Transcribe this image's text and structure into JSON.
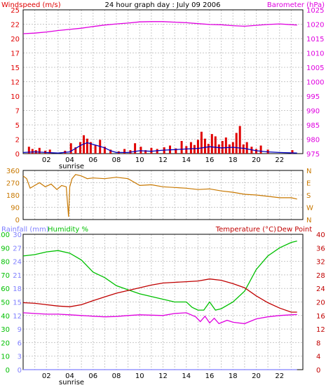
{
  "header": {
    "left_title": "Windspeed (m/s)",
    "center_title": "24 hour graph day : July 09 2006",
    "right_title": "Barometer (hPa)"
  },
  "colors": {
    "wind": "#e00000",
    "wind_avg": "#0000c0",
    "barometer": "#e000e0",
    "direction": "#c87800",
    "rain": "#8080ff",
    "humidity": "#00c000",
    "temperature": "#c00000",
    "dewpoint": "#e000e0"
  },
  "x_ticks": [
    "02",
    "04",
    "06",
    "08",
    "10",
    "12",
    "14",
    "16",
    "18",
    "20",
    "22"
  ],
  "sunrise_label": "sunrise",
  "chart_data": [
    {
      "type": "bar",
      "panel": "wind-barometer",
      "title": "Windspeed (m/s)",
      "ylabel_left": "Windspeed (m/s)",
      "ylabel_right": "Barometer (hPa)",
      "x_range": [
        0,
        24
      ],
      "ylim_left": [
        0,
        25
      ],
      "ylim_right": [
        975,
        1025
      ],
      "left_ticks": [
        "0",
        "2",
        "5",
        "7",
        "10",
        "12",
        "15",
        "17",
        "20",
        "22",
        "25"
      ],
      "right_ticks": [
        "975",
        "980",
        "985",
        "990",
        "995",
        "1000",
        "1005",
        "1010",
        "1015",
        "1020",
        "1025"
      ],
      "series": [
        {
          "name": "Barometer",
          "unit": "hPa",
          "x": [
            0,
            1,
            2,
            3,
            4,
            5,
            6,
            7,
            8,
            9,
            10,
            11,
            12,
            13,
            14,
            15,
            16,
            17,
            18,
            19,
            20,
            21,
            22,
            23.5
          ],
          "y": [
            1016.7,
            1016.9,
            1017.3,
            1017.8,
            1018.2,
            1018.6,
            1019.2,
            1019.7,
            1020.1,
            1020.4,
            1020.8,
            1020.9,
            1020.9,
            1020.7,
            1020.5,
            1020.2,
            1019.9,
            1019.8,
            1019.5,
            1019.3,
            1019.6,
            1019.9,
            1020.1,
            1019.7
          ]
        },
        {
          "name": "Windspeed gust",
          "unit": "m/s",
          "x": [
            0.5,
            0.8,
            1.1,
            1.4,
            1.9,
            2.3,
            3.6,
            4.1,
            4.5,
            4.9,
            5.2,
            5.5,
            5.8,
            6.2,
            6.6,
            7.0,
            7.5,
            8.2,
            8.7,
            9.2,
            9.6,
            10.1,
            10.5,
            11.0,
            11.5,
            12.1,
            12.6,
            13.1,
            13.6,
            14.0,
            14.4,
            14.7,
            15.0,
            15.3,
            15.6,
            15.9,
            16.2,
            16.5,
            16.8,
            17.1,
            17.4,
            17.7,
            18.0,
            18.3,
            18.6,
            18.9,
            19.2,
            19.6,
            20.0,
            20.4,
            21.0,
            23.1
          ],
          "y": [
            1.2,
            0.8,
            0.6,
            1.0,
            0.5,
            0.7,
            0.5,
            1.8,
            1.1,
            2.0,
            3.2,
            2.6,
            2.0,
            1.5,
            2.4,
            1.2,
            0.7,
            0.4,
            0.8,
            0.6,
            1.8,
            1.2,
            0.6,
            1.0,
            0.8,
            1.1,
            1.4,
            0.9,
            2.2,
            1.3,
            2.0,
            1.5,
            2.4,
            3.8,
            2.6,
            1.7,
            3.4,
            3.0,
            1.6,
            2.2,
            2.8,
            1.6,
            2.0,
            3.6,
            4.8,
            1.6,
            2.0,
            1.2,
            0.8,
            1.4,
            0.7,
            0.6
          ]
        },
        {
          "name": "Windspeed average",
          "unit": "m/s",
          "x": [
            0,
            1,
            2,
            3,
            4,
            4.5,
            5,
            5.5,
            6,
            6.5,
            7,
            7.5,
            8,
            9,
            10,
            11,
            12,
            13,
            14,
            15,
            16,
            17,
            18,
            19,
            20,
            21,
            22,
            23.5
          ],
          "y": [
            0.2,
            0.3,
            0.2,
            0.1,
            0.3,
            0.9,
            1.5,
            1.9,
            1.6,
            1.3,
            1.0,
            0.5,
            0.2,
            0.2,
            0.5,
            0.4,
            0.6,
            0.7,
            0.8,
            0.9,
            1.2,
            1.0,
            1.1,
            0.9,
            0.5,
            0.3,
            0.2,
            0.1
          ]
        }
      ]
    },
    {
      "type": "line",
      "panel": "wind-direction",
      "title": "",
      "x_range": [
        0,
        24
      ],
      "ylim_left": [
        0,
        360
      ],
      "left_ticks": [
        "0",
        "90",
        "180",
        "270",
        "360"
      ],
      "right_ticks": [
        "N",
        "W",
        "S",
        "E",
        "N"
      ],
      "series": [
        {
          "name": "Wind direction",
          "unit": "deg",
          "x": [
            0,
            0.3,
            0.6,
            1.0,
            1.4,
            1.9,
            2.4,
            2.9,
            3.3,
            3.7,
            3.9,
            4.0,
            4.2,
            4.5,
            5.0,
            5.5,
            6,
            7,
            8,
            9,
            10,
            11,
            12,
            13,
            14,
            15,
            16,
            17,
            18,
            19,
            20,
            21,
            22,
            23,
            23.5
          ],
          "y": [
            320,
            300,
            230,
            250,
            270,
            240,
            260,
            220,
            250,
            240,
            20,
            240,
            300,
            330,
            320,
            300,
            305,
            300,
            310,
            300,
            250,
            255,
            240,
            235,
            230,
            220,
            225,
            210,
            200,
            185,
            180,
            170,
            160,
            160,
            150
          ]
        }
      ]
    },
    {
      "type": "line",
      "panel": "rain-humidity-temperature",
      "title": "",
      "x_range": [
        0,
        24
      ],
      "ylabel_left_rain": "Rainfall (mm)",
      "ylabel_left_humidity": "Humidity %",
      "ylabel_right": "Temperature (°C)",
      "ylabel_right_extra": "Dew Point",
      "rain_ticks": [
        "0",
        "3",
        "6",
        "9",
        "12",
        "15",
        "18",
        "21",
        "24",
        "27",
        "30"
      ],
      "humidity_ticks": [
        "0",
        "10",
        "20",
        "30",
        "40",
        "50",
        "60",
        "70",
        "80",
        "90",
        "100"
      ],
      "temp_ticks": [
        "0",
        "4",
        "8",
        "12",
        "16",
        "20",
        "24",
        "28",
        "32",
        "36",
        "40"
      ],
      "ylim_rain": [
        0,
        30
      ],
      "ylim_humidity": [
        0,
        100
      ],
      "ylim_temperature": [
        0,
        40
      ],
      "series": [
        {
          "name": "Humidity",
          "unit": "%",
          "x": [
            0,
            1,
            2,
            3,
            4,
            5,
            6,
            7,
            8,
            9,
            10,
            11,
            12,
            13,
            14,
            14.5,
            15,
            15.5,
            16,
            16.5,
            17,
            18,
            19,
            20,
            21,
            22,
            23,
            23.5
          ],
          "y": [
            84,
            85,
            87,
            88,
            86,
            81,
            72,
            68,
            62,
            59,
            56,
            54,
            52,
            50,
            50,
            46,
            44,
            44,
            50,
            44,
            45,
            50,
            58,
            74,
            84,
            90,
            94,
            95
          ]
        },
        {
          "name": "Temperature",
          "unit": "°C",
          "x": [
            0,
            1,
            2,
            3,
            4,
            5,
            6,
            7,
            8,
            9,
            10,
            11,
            12,
            13,
            14,
            15,
            16,
            17,
            18,
            19,
            20,
            21,
            22,
            23,
            23.5
          ],
          "y": [
            19.8,
            19.6,
            19.2,
            18.8,
            18.6,
            19.2,
            20.4,
            21.5,
            22.6,
            23.4,
            24.2,
            25.0,
            25.6,
            25.8,
            26.0,
            26.2,
            26.8,
            26.4,
            25.4,
            24.2,
            21.8,
            19.8,
            18.2,
            17.0,
            17.0
          ]
        },
        {
          "name": "Dew Point",
          "unit": "°C",
          "x": [
            0,
            1,
            2,
            3,
            4,
            5,
            6,
            7,
            8,
            9,
            10,
            11,
            12,
            13,
            14,
            14.8,
            15.2,
            15.6,
            16,
            16.4,
            16.8,
            17.5,
            18,
            19,
            20,
            21,
            22,
            23,
            23.5
          ],
          "y": [
            16.8,
            16.6,
            16.4,
            16.4,
            16.2,
            16.0,
            15.8,
            15.6,
            15.7,
            16.0,
            16.2,
            16.1,
            16.0,
            16.6,
            16.8,
            15.6,
            14.2,
            15.8,
            13.8,
            15.2,
            13.6,
            14.6,
            14.0,
            13.6,
            15.0,
            15.6,
            16.0,
            16.2,
            16.3
          ]
        },
        {
          "name": "Rainfall",
          "unit": "mm",
          "x": [
            0,
            23.5
          ],
          "y": [
            0,
            0
          ]
        }
      ]
    }
  ]
}
